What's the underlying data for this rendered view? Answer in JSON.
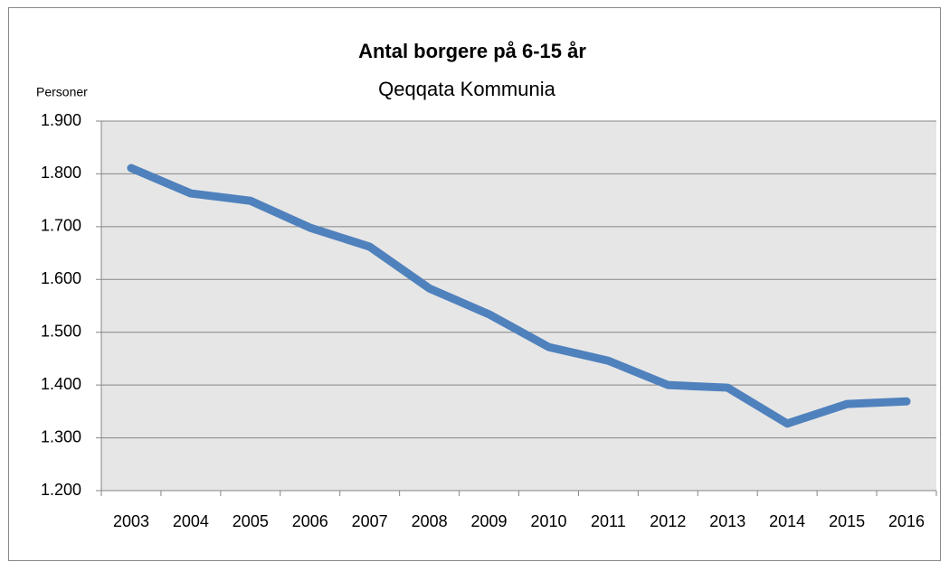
{
  "chart_data": {
    "type": "line",
    "title": "Antal borgere på 6-15 år",
    "subtitle": "Qeqqata Kommunia",
    "y_label": "Personer",
    "categories": [
      "2003",
      "2004",
      "2005",
      "2006",
      "2007",
      "2008",
      "2009",
      "2010",
      "2011",
      "2012",
      "2013",
      "2014",
      "2015",
      "2016"
    ],
    "values": [
      1811,
      1763,
      1749,
      1698,
      1662,
      1583,
      1534,
      1472,
      1446,
      1400,
      1395,
      1327,
      1364,
      1369
    ],
    "color": "#4f81bd",
    "ylim": [
      1200,
      1900
    ],
    "yticks": [
      {
        "value": 1200,
        "label": "1.200"
      },
      {
        "value": 1300,
        "label": "1.300"
      },
      {
        "value": 1400,
        "label": "1.400"
      },
      {
        "value": 1500,
        "label": "1.500"
      },
      {
        "value": 1600,
        "label": "1.600"
      },
      {
        "value": 1700,
        "label": "1.700"
      },
      {
        "value": 1800,
        "label": "1.800"
      },
      {
        "value": 1900,
        "label": "1.900"
      }
    ],
    "grid": true
  }
}
